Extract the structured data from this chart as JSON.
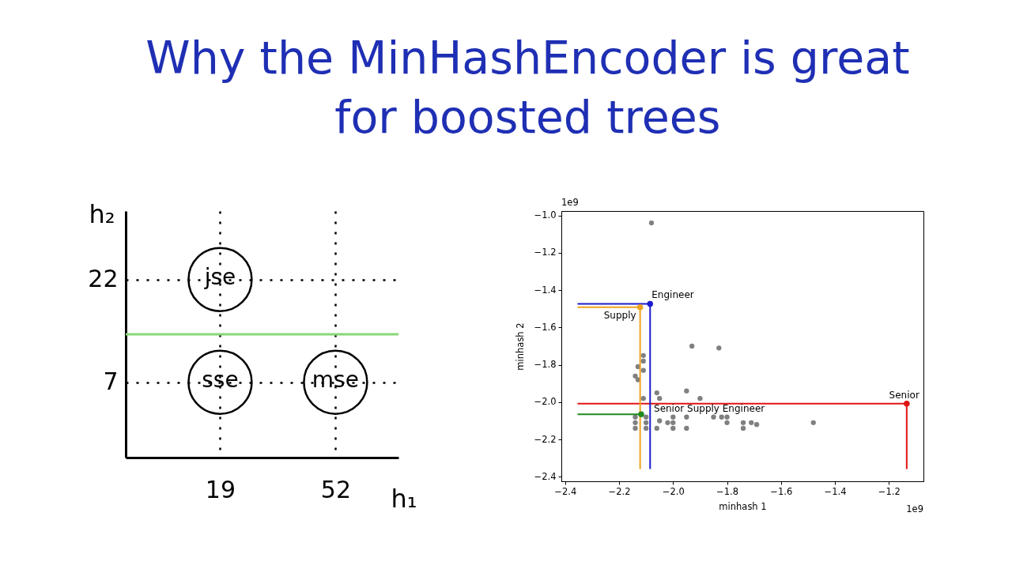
{
  "chart_data": [
    {
      "type": "scatter",
      "title": "Why the MinHashEncoder is great\nfor boosted trees",
      "xlabel": "h₁",
      "ylabel": "h₂",
      "xlim": [
        -8,
        70
      ],
      "ylim": [
        -4,
        32
      ],
      "xticks": [
        19,
        52
      ],
      "yticks": [
        7,
        22
      ],
      "grid": true,
      "marker": "circle",
      "series": [
        {
          "color": "#000000",
          "x": [
            19,
            19,
            52
          ],
          "values": [
            22,
            7,
            7
          ]
        }
      ],
      "annotations": [
        {
          "text": "jse",
          "x": 19,
          "y": 22
        },
        {
          "text": "sse",
          "x": 19,
          "y": 7
        },
        {
          "text": "mse",
          "x": 52,
          "y": 7
        }
      ],
      "ref_lines": [
        {
          "axis": "y",
          "value": 14,
          "color": "#88d878"
        }
      ]
    },
    {
      "type": "scatter",
      "xlabel": "minhash 1",
      "ylabel": "minhash 2",
      "xlim": [
        -2.414,
        -1.072
      ],
      "ylim": [
        -2.424,
        -0.976
      ],
      "xticks": [
        -2.4,
        -2.2,
        {
          "value": -2.0,
          "label": "−2.0"
        },
        -1.8,
        -1.6,
        -1.4,
        -1.2
      ],
      "yticks": [
        -2.4,
        -2.2,
        {
          "value": -2.0,
          "label": "−2.0"
        },
        -1.8,
        -1.6,
        -1.4,
        -1.2,
        {
          "value": -1.0,
          "label": "−1.0"
        }
      ],
      "marker": "circle",
      "series": [
        {
          "color": "#808080",
          "x": [
            -2.08,
            -1.93,
            -1.83,
            -2.11,
            -2.11,
            -2.11,
            -2.14,
            -2.06,
            -1.95,
            -2.05,
            -1.9,
            -2.11,
            -2.0,
            -1.95,
            -1.85,
            -1.82,
            -1.8,
            -2.05,
            -2.02,
            -2.0,
            -1.8,
            -1.74,
            -1.71,
            -1.69,
            -1.48,
            -2.06,
            -2.0,
            -1.95,
            -1.74,
            -2.14,
            -2.14,
            -2.14,
            -2.1,
            -2.1,
            -2.1,
            -2.13,
            -2.13
          ],
          "values": [
            -1.04,
            -1.7,
            -1.71,
            -1.75,
            -1.78,
            -1.83,
            -1.86,
            -1.95,
            -1.94,
            -1.98,
            -1.98,
            -1.98,
            -2.08,
            -2.08,
            -2.08,
            -2.08,
            -2.08,
            -2.1,
            -2.11,
            -2.11,
            -2.11,
            -2.11,
            -2.11,
            -2.12,
            -2.11,
            -2.14,
            -2.14,
            -2.14,
            -2.14,
            -2.08,
            -2.11,
            -2.14,
            -2.08,
            -2.11,
            -2.14,
            -1.81,
            -1.88
          ]
        },
        {
          "type": "line",
          "marker": "none",
          "color": "#e01515",
          "x": [
            -2.354,
            -1.134,
            -1.134
          ],
          "values": [
            -2.008,
            -2.008,
            -2.358
          ]
        },
        {
          "type": "line",
          "marker": "none",
          "color": "#f0a21e",
          "x": [
            -2.354,
            -2.122,
            -2.122
          ],
          "values": [
            -1.491,
            -1.491,
            -2.358
          ]
        },
        {
          "type": "line",
          "marker": "none",
          "color": "#1c1cd0",
          "x": [
            -2.354,
            -2.085,
            -2.085
          ],
          "values": [
            -1.473,
            -1.473,
            -2.358
          ]
        },
        {
          "type": "line",
          "marker": "none",
          "color": "#218a21",
          "x": [
            -2.354,
            -2.118
          ],
          "values": [
            -2.065,
            -2.065
          ]
        },
        {
          "colors": [
            "#1c1cd0",
            "#f0a21e",
            "#e01515",
            "#218a21"
          ],
          "x": [
            -2.085,
            -2.122,
            -1.134,
            -2.118
          ],
          "values": [
            -1.473,
            -1.491,
            -2.008,
            -2.065
          ]
        }
      ],
      "annotations": [
        {
          "text": "Engineer",
          "x": -2.085,
          "y": -1.473
        },
        {
          "text": "Supply",
          "x": -2.122,
          "y": -1.491
        },
        {
          "text": "Senior",
          "x": -1.134,
          "y": -2.008
        },
        {
          "text": "Senior Supply Engineer",
          "x": -2.118,
          "y": -2.065
        },
        "1e9",
        "1e9"
      ]
    }
  ]
}
